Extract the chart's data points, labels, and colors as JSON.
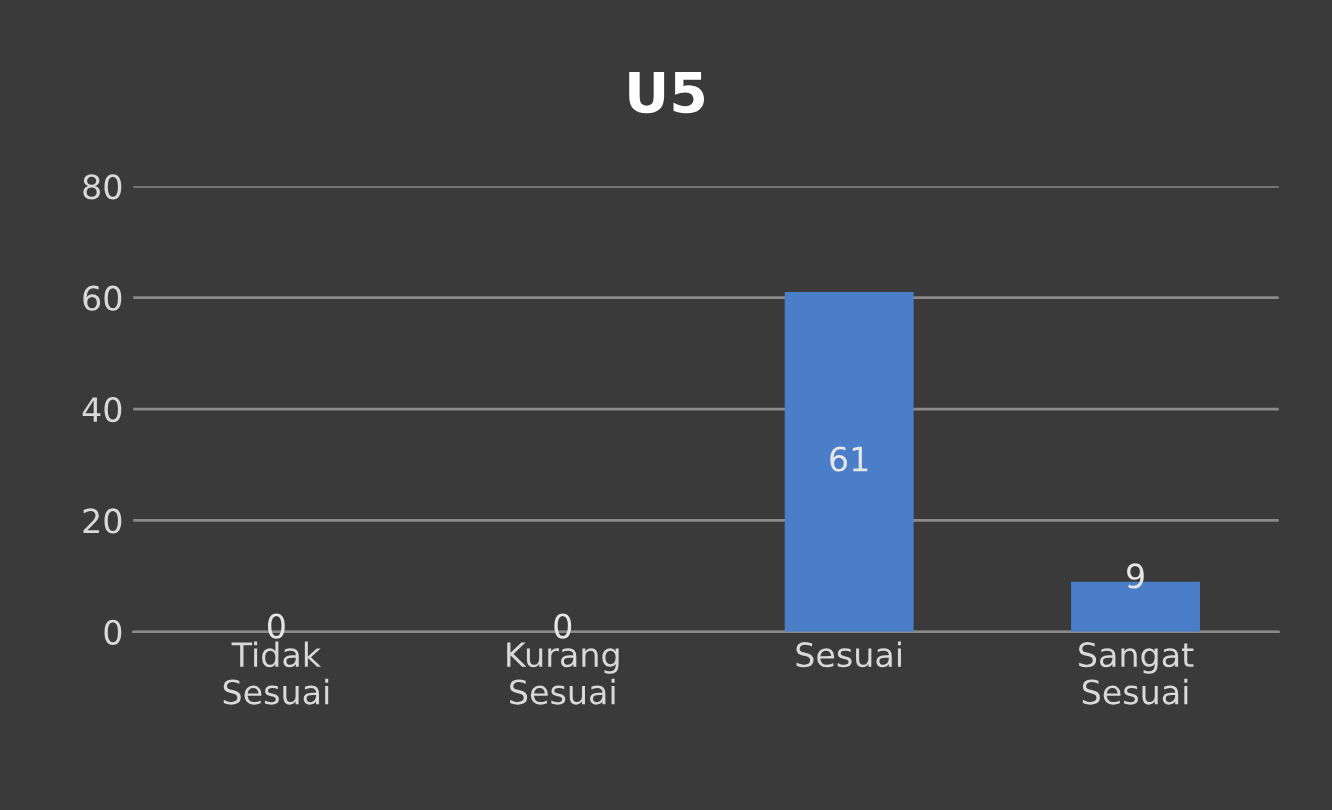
{
  "chart_data": {
    "type": "bar",
    "title": "U5",
    "categories": [
      "Tidak Sesuai",
      "Kurang Sesuai",
      "Sesuai",
      "Sangat Sesuai"
    ],
    "values": [
      0,
      0,
      61,
      9
    ],
    "color": "#4a7ec8",
    "ylim": [
      0,
      80
    ],
    "yticks": [
      0,
      20,
      40,
      60,
      80
    ],
    "grid": "y",
    "data_labels": true
  }
}
